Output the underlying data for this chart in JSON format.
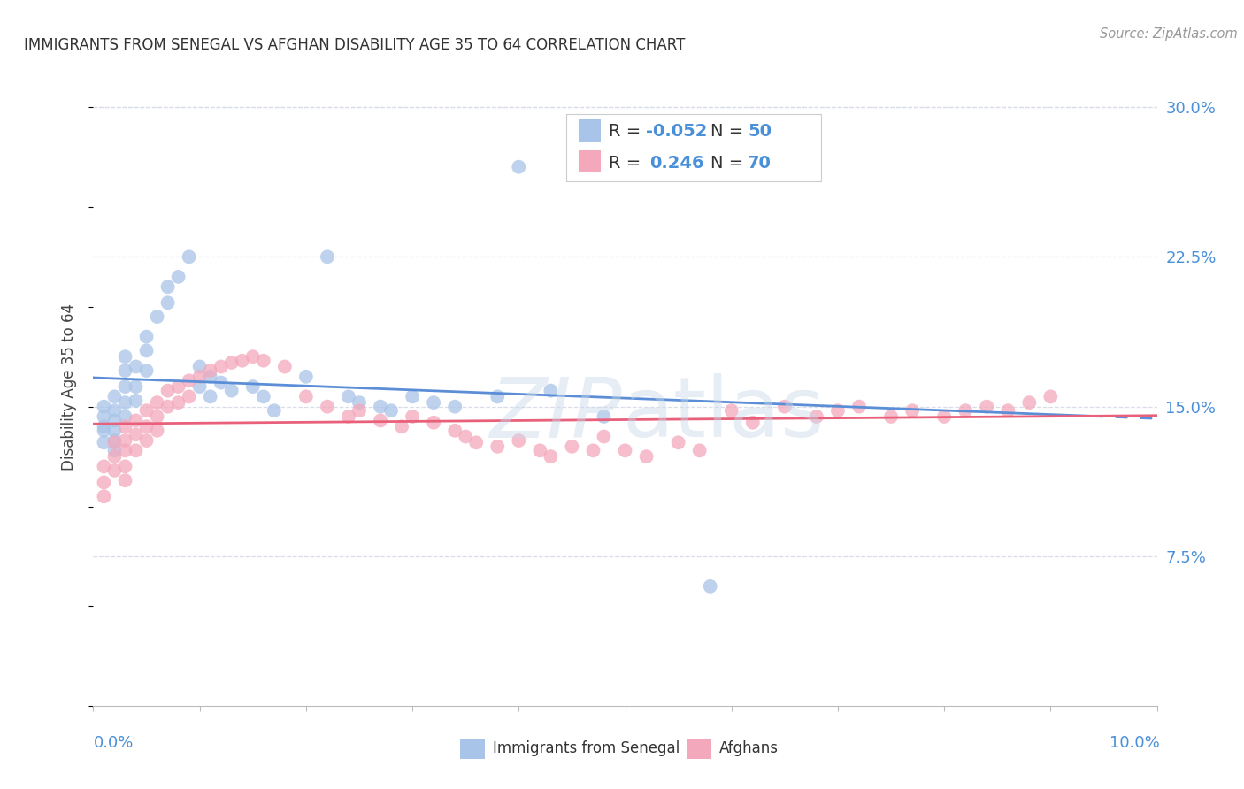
{
  "title": "IMMIGRANTS FROM SENEGAL VS AFGHAN DISABILITY AGE 35 TO 64 CORRELATION CHART",
  "source": "Source: ZipAtlas.com",
  "ylabel": "Disability Age 35 to 64",
  "ytick_labels": [
    "7.5%",
    "15.0%",
    "22.5%",
    "30.0%"
  ],
  "ytick_values": [
    0.075,
    0.15,
    0.225,
    0.3
  ],
  "xmin": 0.0,
  "xmax": 0.1,
  "ymin": 0.0,
  "ymax": 0.32,
  "r_senegal": -0.052,
  "n_senegal": 50,
  "r_afghan": 0.246,
  "n_afghan": 70,
  "color_senegal": "#a8c4e8",
  "color_afghan": "#f4a8bc",
  "color_line_senegal": "#5b8ed6",
  "color_line_afghan": "#e8607a",
  "color_axis_blue": "#4a90d9",
  "background_color": "#ffffff",
  "grid_color": "#d8dde8",
  "senegal_x": [
    0.001,
    0.001,
    0.001,
    0.001,
    0.001,
    0.002,
    0.002,
    0.002,
    0.002,
    0.002,
    0.002,
    0.003,
    0.003,
    0.003,
    0.003,
    0.003,
    0.004,
    0.004,
    0.004,
    0.005,
    0.005,
    0.005,
    0.006,
    0.007,
    0.007,
    0.008,
    0.009,
    0.01,
    0.01,
    0.011,
    0.011,
    0.012,
    0.013,
    0.015,
    0.016,
    0.017,
    0.02,
    0.022,
    0.024,
    0.025,
    0.027,
    0.028,
    0.03,
    0.032,
    0.034,
    0.038,
    0.04,
    0.043,
    0.048,
    0.058
  ],
  "senegal_y": [
    0.15,
    0.145,
    0.14,
    0.138,
    0.132,
    0.155,
    0.148,
    0.143,
    0.138,
    0.133,
    0.128,
    0.175,
    0.168,
    0.16,
    0.152,
    0.145,
    0.17,
    0.16,
    0.153,
    0.185,
    0.178,
    0.168,
    0.195,
    0.21,
    0.202,
    0.215,
    0.225,
    0.17,
    0.16,
    0.165,
    0.155,
    0.162,
    0.158,
    0.16,
    0.155,
    0.148,
    0.165,
    0.225,
    0.155,
    0.152,
    0.15,
    0.148,
    0.155,
    0.152,
    0.15,
    0.155,
    0.27,
    0.158,
    0.145,
    0.06
  ],
  "afghan_x": [
    0.001,
    0.001,
    0.001,
    0.002,
    0.002,
    0.002,
    0.003,
    0.003,
    0.003,
    0.003,
    0.003,
    0.004,
    0.004,
    0.004,
    0.005,
    0.005,
    0.005,
    0.006,
    0.006,
    0.006,
    0.007,
    0.007,
    0.008,
    0.008,
    0.009,
    0.009,
    0.01,
    0.011,
    0.012,
    0.013,
    0.014,
    0.015,
    0.016,
    0.018,
    0.02,
    0.022,
    0.024,
    0.025,
    0.027,
    0.029,
    0.03,
    0.032,
    0.034,
    0.035,
    0.036,
    0.038,
    0.04,
    0.042,
    0.043,
    0.045,
    0.047,
    0.048,
    0.05,
    0.052,
    0.055,
    0.057,
    0.06,
    0.062,
    0.065,
    0.068,
    0.07,
    0.072,
    0.075,
    0.077,
    0.08,
    0.082,
    0.084,
    0.086,
    0.088,
    0.09
  ],
  "afghan_y": [
    0.12,
    0.112,
    0.105,
    0.132,
    0.125,
    0.118,
    0.14,
    0.133,
    0.128,
    0.12,
    0.113,
    0.143,
    0.136,
    0.128,
    0.148,
    0.14,
    0.133,
    0.152,
    0.145,
    0.138,
    0.158,
    0.15,
    0.16,
    0.152,
    0.163,
    0.155,
    0.165,
    0.168,
    0.17,
    0.172,
    0.173,
    0.175,
    0.173,
    0.17,
    0.155,
    0.15,
    0.145,
    0.148,
    0.143,
    0.14,
    0.145,
    0.142,
    0.138,
    0.135,
    0.132,
    0.13,
    0.133,
    0.128,
    0.125,
    0.13,
    0.128,
    0.135,
    0.128,
    0.125,
    0.132,
    0.128,
    0.148,
    0.142,
    0.15,
    0.145,
    0.148,
    0.15,
    0.145,
    0.148,
    0.145,
    0.148,
    0.15,
    0.148,
    0.152,
    0.155
  ],
  "legend_labels": [
    "Immigrants from Senegal",
    "Afghans"
  ],
  "watermark": "ZIPat las"
}
